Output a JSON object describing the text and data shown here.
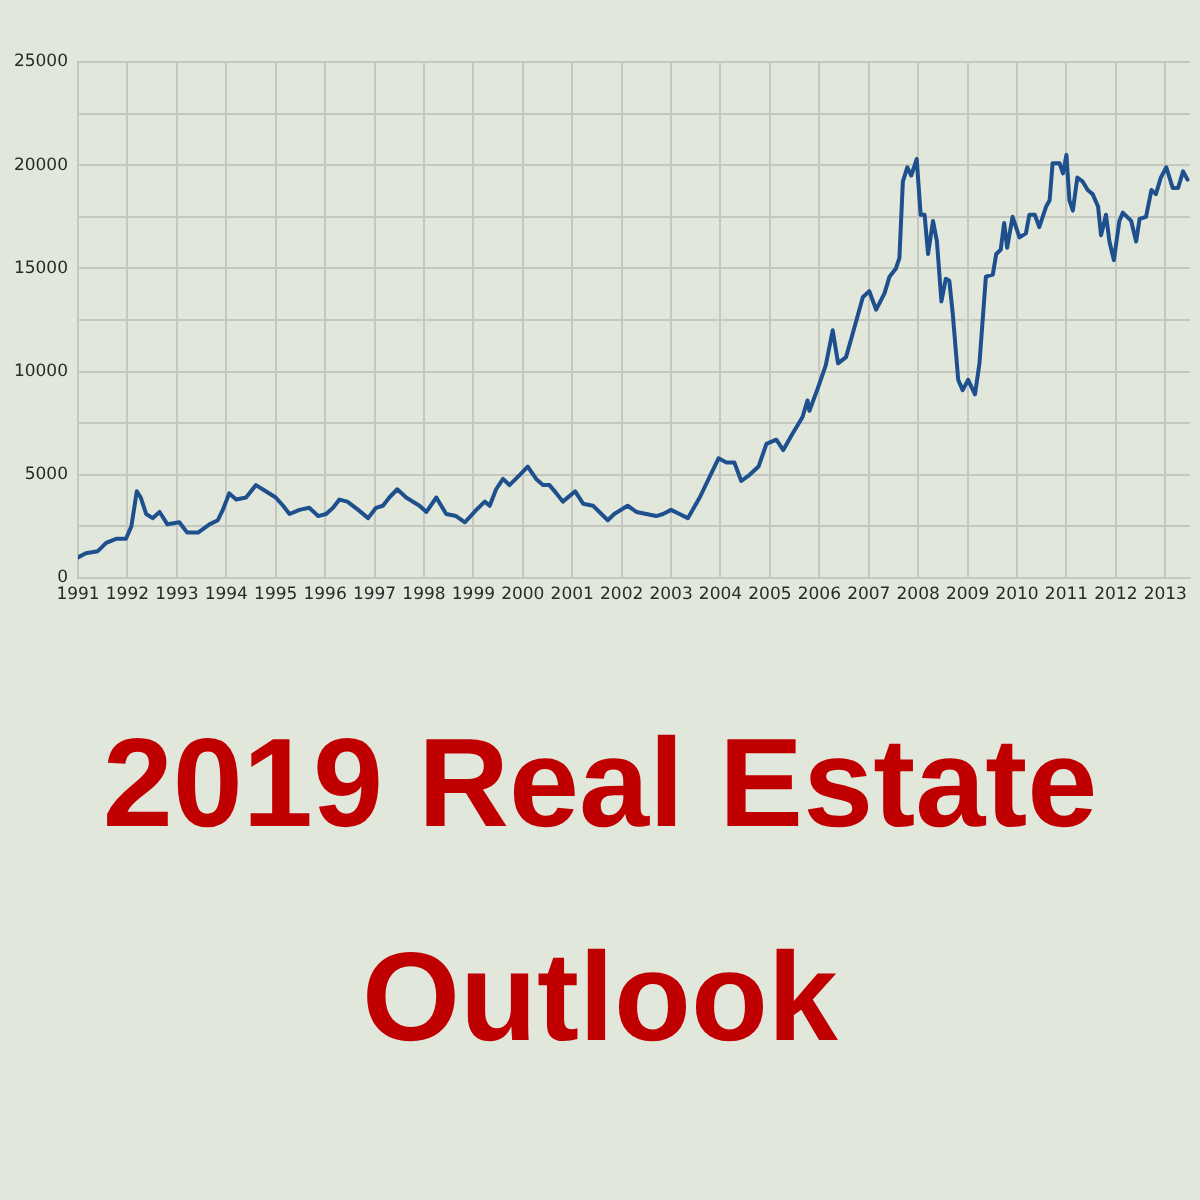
{
  "chart_data": {
    "type": "line",
    "x": [
      1991.0,
      1991.16,
      1991.4,
      1991.57,
      1991.77,
      1991.97,
      1992.08,
      1992.19,
      1992.27,
      1992.38,
      1992.51,
      1992.65,
      1992.81,
      1993.05,
      1993.21,
      1993.43,
      1993.66,
      1993.83,
      1993.93,
      1994.06,
      1994.2,
      1994.4,
      1994.6,
      1994.8,
      1995.0,
      1995.15,
      1995.28,
      1995.48,
      1995.68,
      1995.86,
      1996.02,
      1996.16,
      1996.29,
      1996.45,
      1996.67,
      1996.87,
      1997.03,
      1997.17,
      1997.3,
      1997.46,
      1997.64,
      1997.91,
      1998.05,
      1998.25,
      1998.45,
      1998.65,
      1998.83,
      1999.06,
      1999.23,
      1999.33,
      1999.46,
      1999.6,
      1999.73,
      1999.94,
      2000.1,
      2000.27,
      2000.41,
      2000.54,
      2000.68,
      2000.81,
      2001.06,
      2001.22,
      2001.42,
      2001.55,
      2001.72,
      2001.85,
      2002.12,
      2002.3,
      2002.5,
      2002.7,
      2002.84,
      2003.0,
      2003.17,
      2003.34,
      2003.58,
      2003.78,
      2003.96,
      2004.12,
      2004.28,
      2004.42,
      2004.59,
      2004.77,
      2004.93,
      2005.13,
      2005.27,
      2005.46,
      2005.66,
      2005.76,
      2005.8,
      2005.97,
      2006.13,
      2006.27,
      2006.38,
      2006.54,
      2006.67,
      2006.88,
      2007.01,
      2007.15,
      2007.32,
      2007.42,
      2007.55,
      2007.62,
      2007.69,
      2007.78,
      2007.86,
      2007.97,
      2008.05,
      2008.13,
      2008.2,
      2008.3,
      2008.38,
      2008.47,
      2008.56,
      2008.63,
      2008.7,
      2008.81,
      2008.9,
      2009.01,
      2009.15,
      2009.24,
      2009.37,
      2009.51,
      2009.58,
      2009.67,
      2009.74,
      2009.8,
      2009.91,
      2010.05,
      2010.18,
      2010.25,
      2010.36,
      2010.45,
      2010.59,
      2010.66,
      2010.72,
      2010.86,
      2010.93,
      2011.0,
      2011.06,
      2011.13,
      2011.22,
      2011.33,
      2011.43,
      2011.53,
      2011.64,
      2011.7,
      2011.8,
      2011.87,
      2011.96,
      2012.07,
      2012.14,
      2012.31,
      2012.41,
      2012.48,
      2012.61,
      2012.72,
      2012.81,
      2012.91,
      2013.02,
      2013.15,
      2013.26,
      2013.36,
      2013.45
    ],
    "series": [
      {
        "color": "#1d508d",
        "values": [
          1000,
          1200,
          1300,
          1700,
          1900,
          1900,
          2500,
          4200,
          3900,
          3100,
          2900,
          3200,
          2600,
          2700,
          2200,
          2200,
          2600,
          2800,
          3300,
          4100,
          3800,
          3900,
          4500,
          4200,
          3900,
          3500,
          3100,
          3300,
          3400,
          3000,
          3100,
          3400,
          3800,
          3700,
          3300,
          2900,
          3400,
          3500,
          3900,
          4300,
          3900,
          3500,
          3200,
          3900,
          3100,
          3000,
          2700,
          3300,
          3700,
          3500,
          4300,
          4800,
          4500,
          5000,
          5400,
          4800,
          4500,
          4500,
          4100,
          3700,
          4200,
          3600,
          3500,
          3200,
          2800,
          3100,
          3500,
          3200,
          3100,
          3000,
          3100,
          3300,
          3100,
          2900,
          3900,
          4900,
          5800,
          5600,
          5600,
          4700,
          5000,
          5400,
          6500,
          6700,
          6200,
          7000,
          7800,
          8600,
          8100,
          9200,
          10300,
          12000,
          10400,
          10700,
          11800,
          13600,
          13900,
          13000,
          13800,
          14600,
          15000,
          15500,
          19200,
          19900,
          19500,
          20300,
          17600,
          17600,
          15700,
          17300,
          16300,
          13400,
          14500,
          14400,
          12800,
          9600,
          9100,
          9600,
          8900,
          10400,
          14600,
          14700,
          15700,
          15900,
          17200,
          16000,
          17500,
          16500,
          16700,
          17600,
          17600,
          17000,
          18000,
          18300,
          20100,
          20100,
          19600,
          20500,
          18300,
          17800,
          19400,
          19200,
          18800,
          18600,
          18000,
          16600,
          17600,
          16300,
          15400,
          17300,
          17700,
          17300,
          16300,
          17400,
          17500,
          18800,
          18600,
          19400,
          19900,
          18900,
          18900,
          19700,
          19300
        ]
      }
    ],
    "xlim": [
      1991,
      2013.5
    ],
    "xticks": [
      1991,
      1992,
      1993,
      1994,
      1995,
      1996,
      1997,
      1998,
      1999,
      2000,
      2001,
      2002,
      2003,
      2004,
      2005,
      2006,
      2007,
      2008,
      2009,
      2010,
      2011,
      2012,
      2013
    ],
    "ylim": [
      0,
      25000
    ],
    "yticks": [
      0,
      {
        "value": 2500,
        "label": null
      },
      5000,
      {
        "value": 7500,
        "label": null
      },
      10000,
      {
        "value": 12500,
        "label": null
      },
      15000,
      {
        "value": 17500,
        "label": null
      },
      20000,
      {
        "value": 22500,
        "label": null
      },
      25000
    ],
    "grid": true,
    "marker": "none",
    "annotations": [
      "2019 Real Estate Outlook"
    ]
  }
}
